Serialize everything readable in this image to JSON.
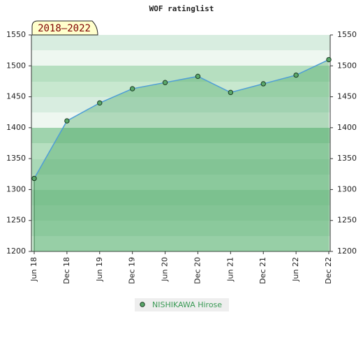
{
  "chart_data": {
    "type": "area",
    "title": "WOF ratinglist",
    "annotation": "2018–2022",
    "categories": [
      "Jun 18",
      "Dec 18",
      "Jun 19",
      "Dec 19",
      "Jun 20",
      "Dec 20",
      "Jun 21",
      "Dec 21",
      "Jun 22",
      "Dec 22"
    ],
    "series": [
      {
        "name": "NISHIKAWA Hirose",
        "color": "#4f9ed6",
        "values": [
          1318,
          1411,
          1440,
          1463,
          1473,
          1483,
          1457,
          1471,
          1485,
          1510
        ]
      }
    ],
    "ylim": [
      1200,
      1550
    ],
    "yticks": [
      1200,
      1250,
      1300,
      1350,
      1400,
      1450,
      1500,
      1550
    ],
    "y2ticks": true
  }
}
